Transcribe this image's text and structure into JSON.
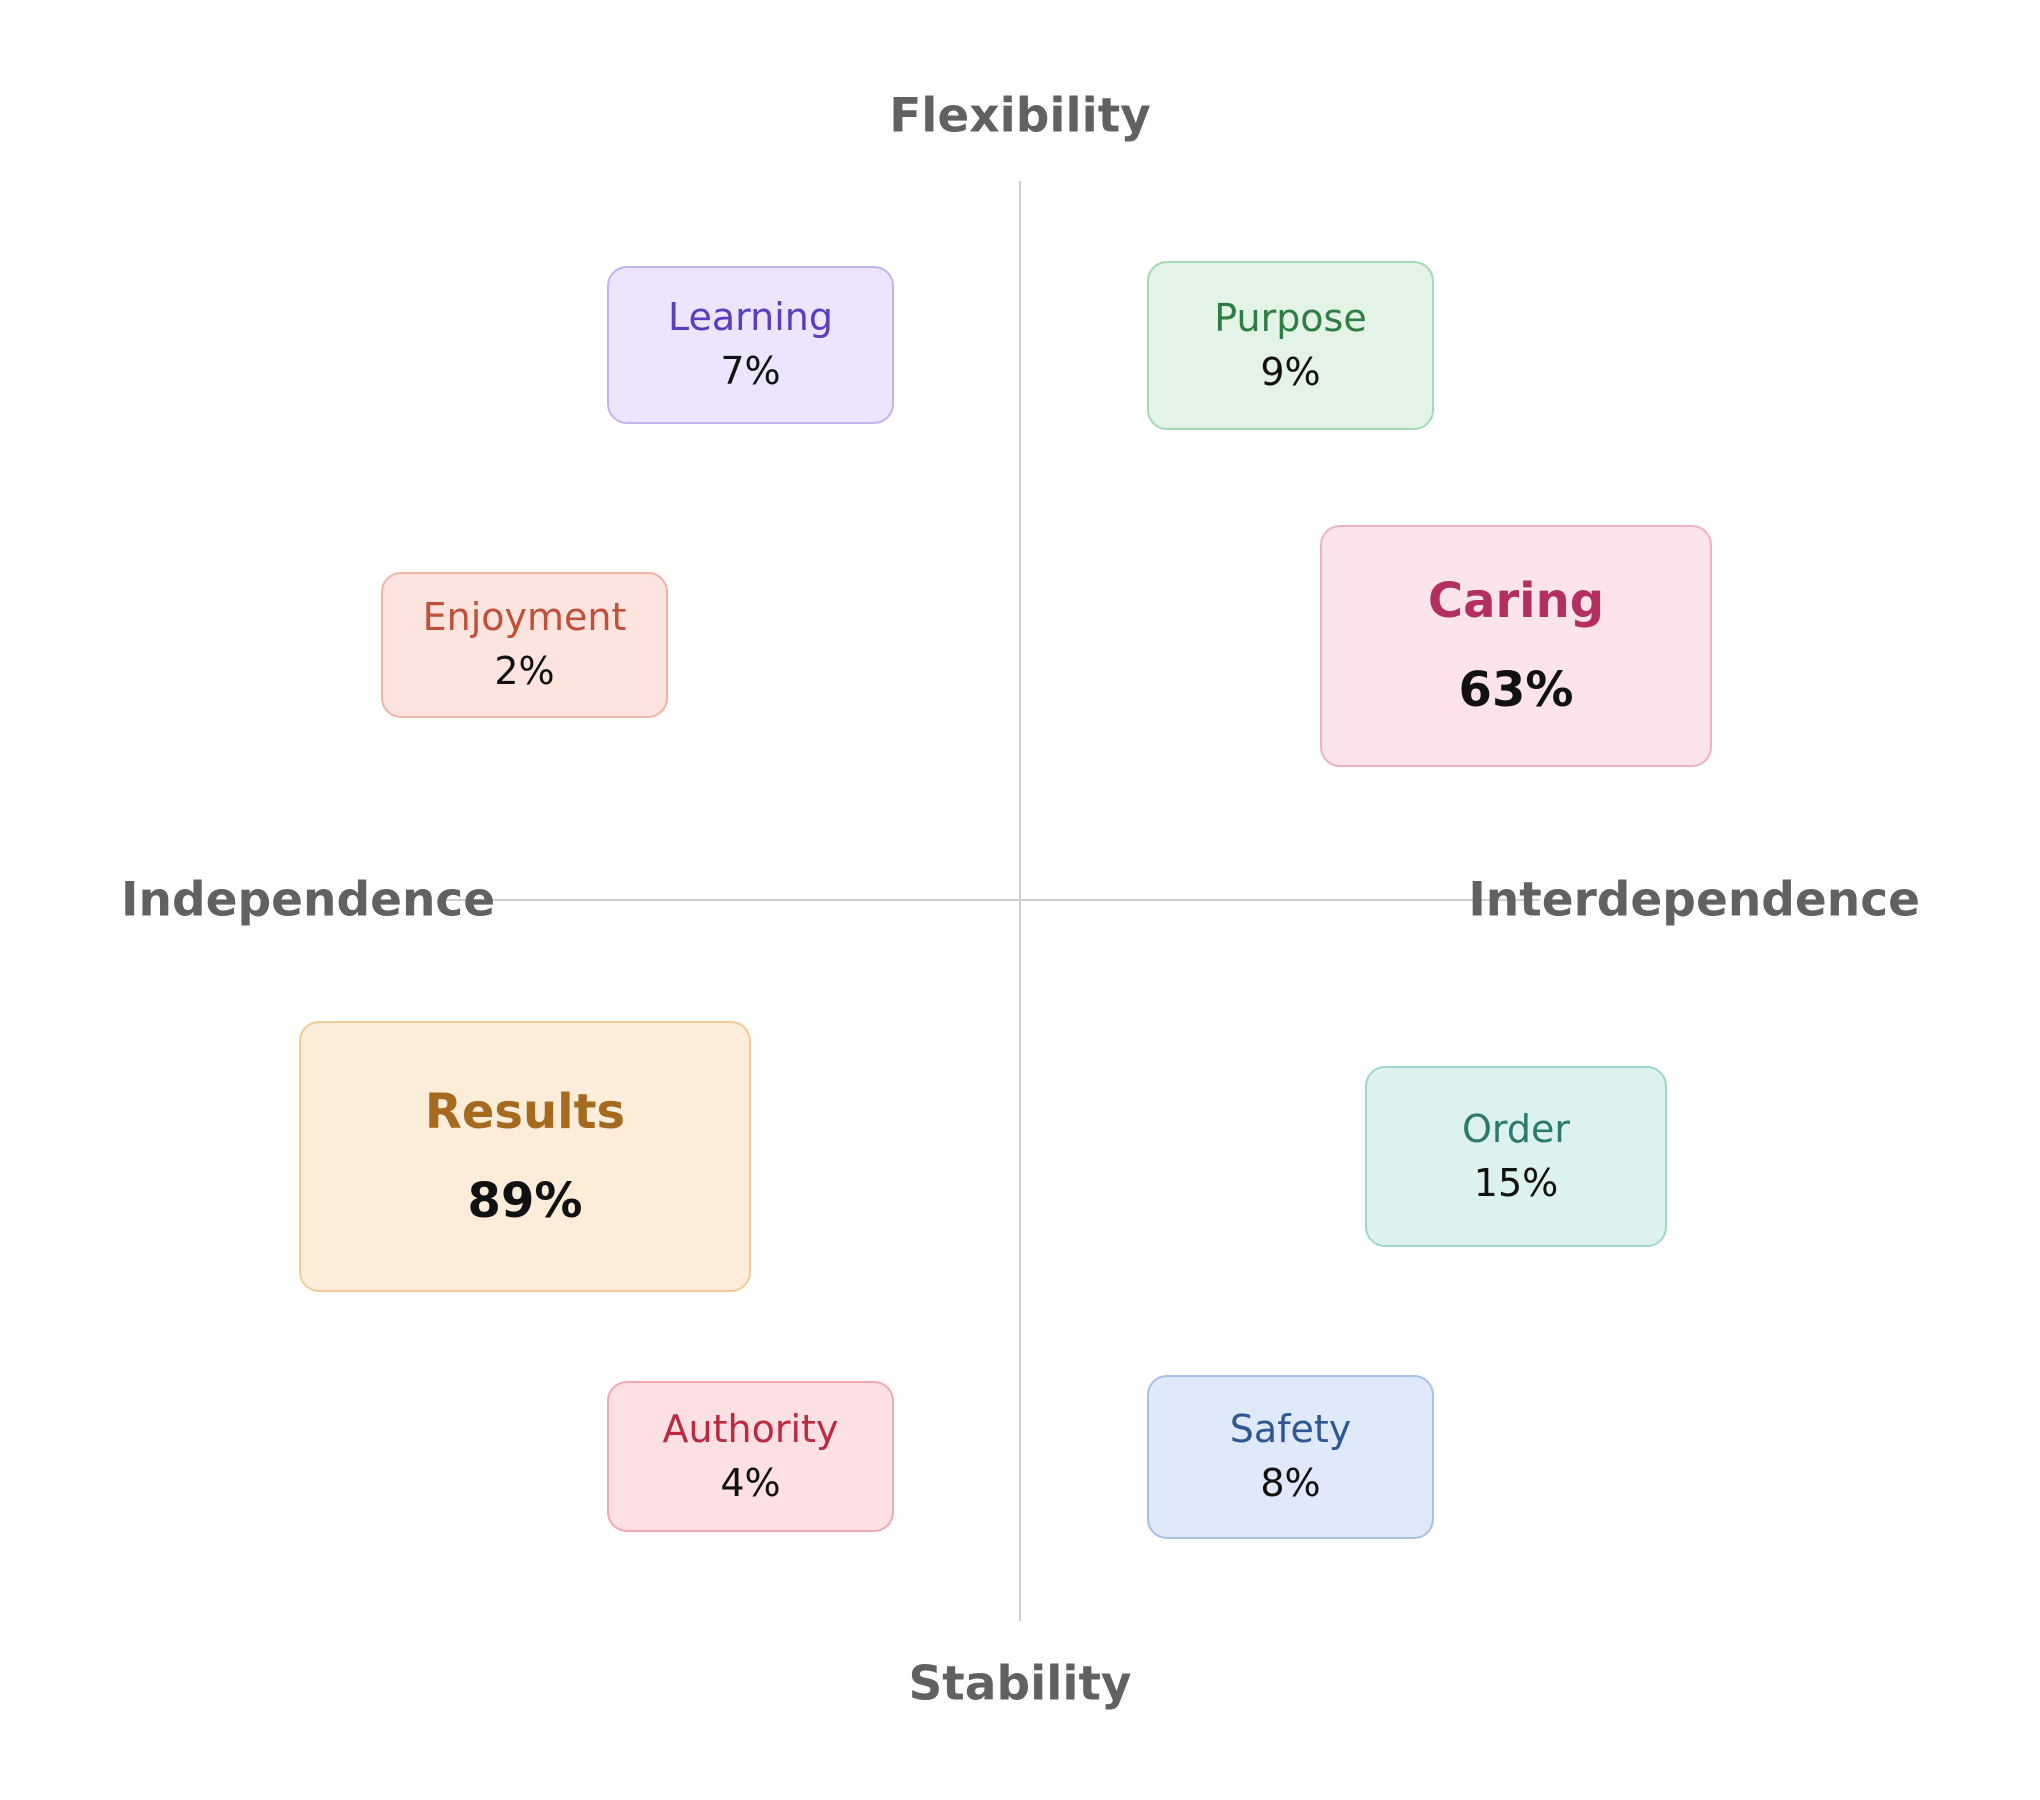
{
  "axes": {
    "top": "Flexibility",
    "bottom": "Stability",
    "left": "Independence",
    "right": "Interdependence"
  },
  "cards": {
    "learning": {
      "name": "Learning",
      "value": "7%",
      "text_color": "#5a3ebf",
      "fill": "#ece5fd",
      "border": "#c2b3ee"
    },
    "purpose": {
      "name": "Purpose",
      "value": "9%",
      "text_color": "#2e7d45",
      "fill": "#e3f3e6",
      "border": "#a6d8b2"
    },
    "enjoyment": {
      "name": "Enjoyment",
      "value": "2%",
      "text_color": "#c0503a",
      "fill": "#fde4df",
      "border": "#f0b3a6"
    },
    "caring": {
      "name": "Caring",
      "value": "63%",
      "text_color": "#b3305e",
      "fill": "#fde4ec",
      "border": "#f0b1c6"
    },
    "results": {
      "name": "Results",
      "value": "89%",
      "text_color": "#a66a1f",
      "fill": "#fcedda",
      "border": "#efcc96"
    },
    "order": {
      "name": "Order",
      "value": "15%",
      "text_color": "#2a7a6e",
      "fill": "#ddf2ef",
      "border": "#9fd7cd"
    },
    "authority": {
      "name": "Authority",
      "value": "4%",
      "text_color": "#bb2a3f",
      "fill": "#fde0e4",
      "border": "#f0aab4"
    },
    "safety": {
      "name": "Safety",
      "value": "8%",
      "text_color": "#2e5793",
      "fill": "#dfe9f9",
      "border": "#a8bfe6"
    }
  }
}
